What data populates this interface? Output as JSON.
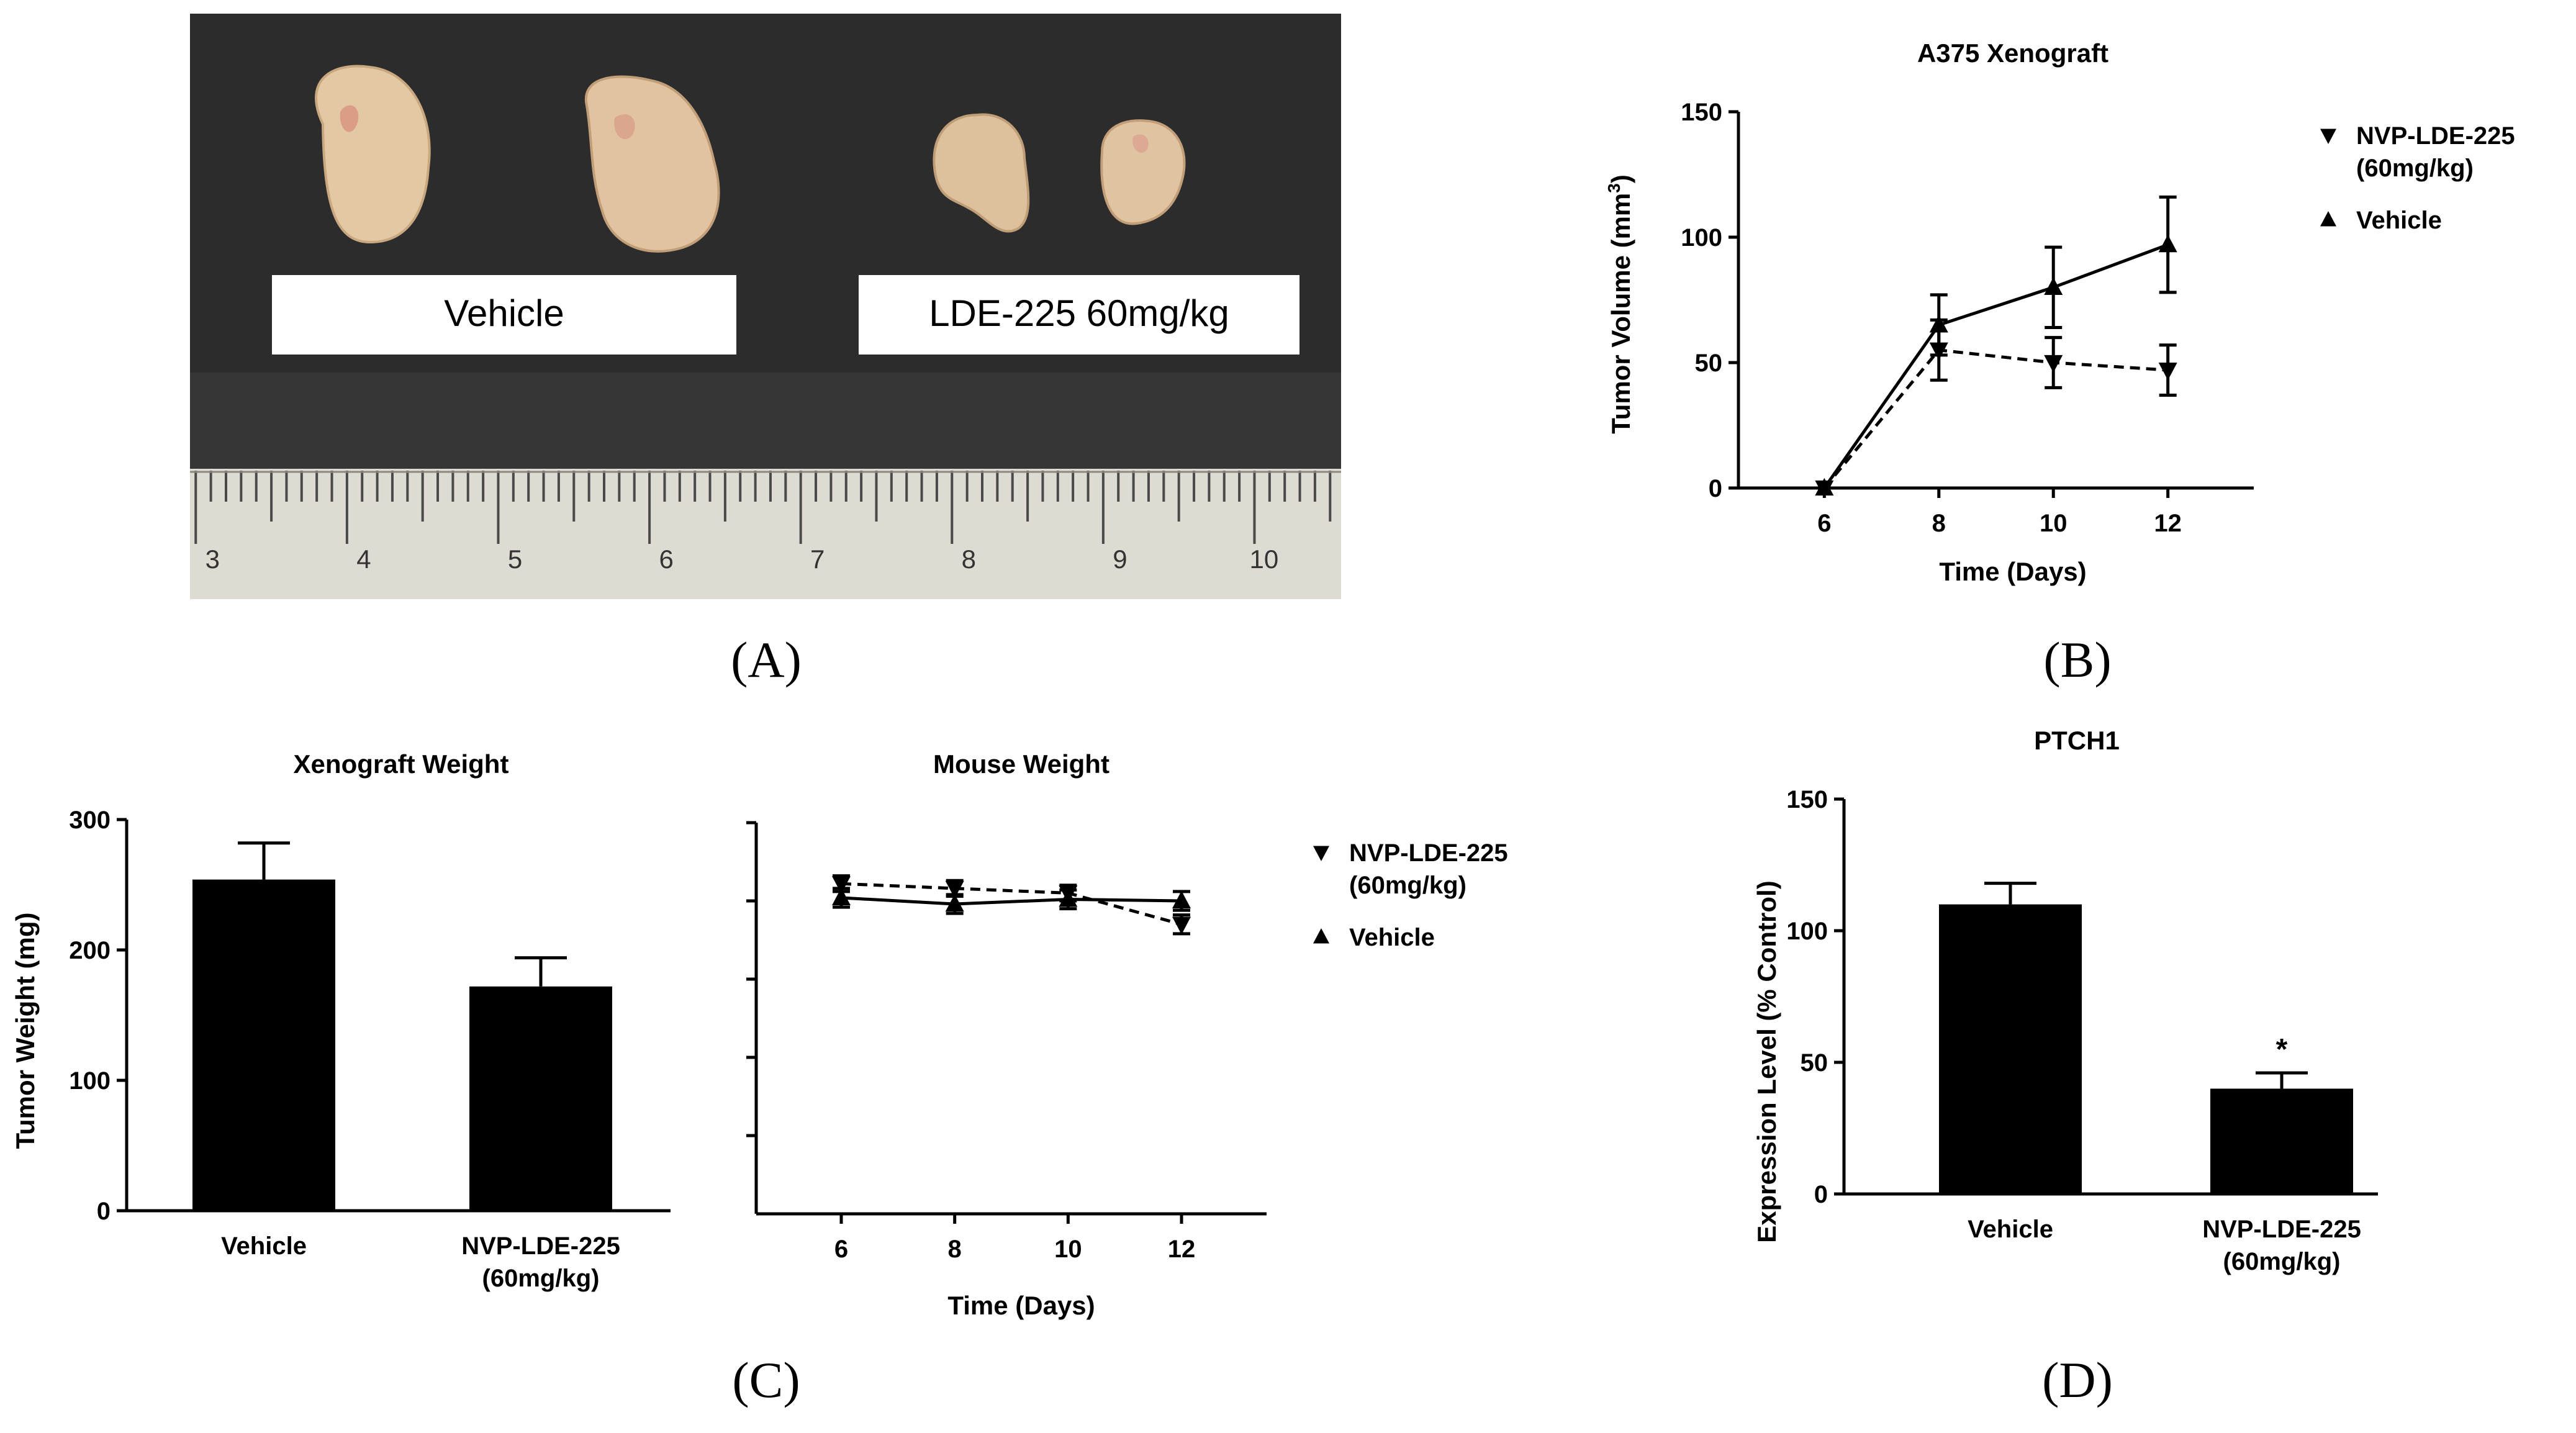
{
  "panel_labels": {
    "a": "(A)",
    "b": "(B)",
    "c": "(C)",
    "d": "(D)"
  },
  "photo": {
    "left_label": "Vehicle",
    "right_label": "LDE-225 60mg/kg",
    "ruler_numbers": [
      "3",
      "4",
      "5",
      "6",
      "7",
      "8",
      "9",
      "10"
    ],
    "colors": {
      "background": "#2c2c2c",
      "ruler": "#dedbd2",
      "tumor": "#e3c9a3"
    }
  },
  "chart_data": [
    {
      "id": "B",
      "type": "line",
      "title": "A375 Xenograft",
      "xlabel": "Time (Days)",
      "ylabel_prefix": "Tumor Volume (mm",
      "ylabel_sup": "3",
      "ylabel_suffix": ")",
      "x": [
        6,
        8,
        10,
        12
      ],
      "xlim": [
        4.5,
        13.5
      ],
      "ylim": [
        0,
        150
      ],
      "xticks": [
        "6",
        "8",
        "10",
        "12"
      ],
      "yticks": [
        "0",
        "50",
        "100",
        "150"
      ],
      "series": [
        {
          "name": "Vehicle",
          "marker": "triangle-up",
          "dash": "solid",
          "values": [
            0,
            65,
            80,
            97
          ],
          "errors": [
            0,
            12,
            16,
            19
          ]
        },
        {
          "name": "NVP-LDE-225 (60mg/kg)",
          "marker": "triangle-down",
          "dash": "dashed",
          "values": [
            0,
            55,
            50,
            47
          ],
          "errors": [
            0,
            12,
            10,
            10
          ]
        }
      ],
      "legend": [
        {
          "marker": "triangle-down",
          "lines": [
            "NVP-LDE-225",
            "(60mg/kg)"
          ]
        },
        {
          "marker": "triangle-up",
          "lines": [
            "Vehicle"
          ]
        }
      ]
    },
    {
      "id": "C1",
      "type": "bar",
      "title": "Xenograft Weight",
      "ylabel": "Tumor Weight (mg)",
      "categories": [
        [
          "Vehicle"
        ],
        [
          "NVP-LDE-225",
          "(60mg/kg)"
        ]
      ],
      "values": [
        254,
        172
      ],
      "errors": [
        28,
        22
      ],
      "ylim": [
        0,
        300
      ],
      "yticks": [
        "0",
        "100",
        "200",
        "300"
      ]
    },
    {
      "id": "C2",
      "type": "line",
      "title": "Mouse Weight",
      "xlabel": "Time (Days)",
      "x": [
        6,
        8,
        10,
        12
      ],
      "xlim": [
        4.5,
        13.5
      ],
      "ylim": [
        0,
        5
      ],
      "ytick_count": 5,
      "xticks": [
        "6",
        "8",
        "10",
        "12"
      ],
      "series": [
        {
          "name": "Vehicle",
          "marker": "triangle-up",
          "dash": "solid",
          "values": [
            4.04,
            3.96,
            4.02,
            4.0
          ],
          "errors": [
            0.12,
            0.12,
            0.12,
            0.12
          ]
        },
        {
          "name": "NVP-LDE-225 (60mg/kg)",
          "marker": "triangle-down",
          "dash": "dashed",
          "values": [
            4.22,
            4.16,
            4.1,
            3.7
          ],
          "errors": [
            0.1,
            0.1,
            0.1,
            0.12
          ]
        }
      ],
      "legend": [
        {
          "marker": "triangle-down",
          "lines": [
            "NVP-LDE-225",
            "(60mg/kg)"
          ]
        },
        {
          "marker": "triangle-up",
          "lines": [
            "Vehicle"
          ]
        }
      ]
    },
    {
      "id": "D",
      "type": "bar",
      "title": "PTCH1",
      "ylabel": "Expression Level (% Control)",
      "categories": [
        [
          "Vehicle"
        ],
        [
          "NVP-LDE-225",
          "(60mg/kg)"
        ]
      ],
      "values": [
        110,
        40
      ],
      "errors": [
        8,
        6
      ],
      "significance": [
        "",
        "*"
      ],
      "ylim": [
        0,
        150
      ],
      "yticks": [
        "0",
        "50",
        "100",
        "150"
      ]
    }
  ]
}
